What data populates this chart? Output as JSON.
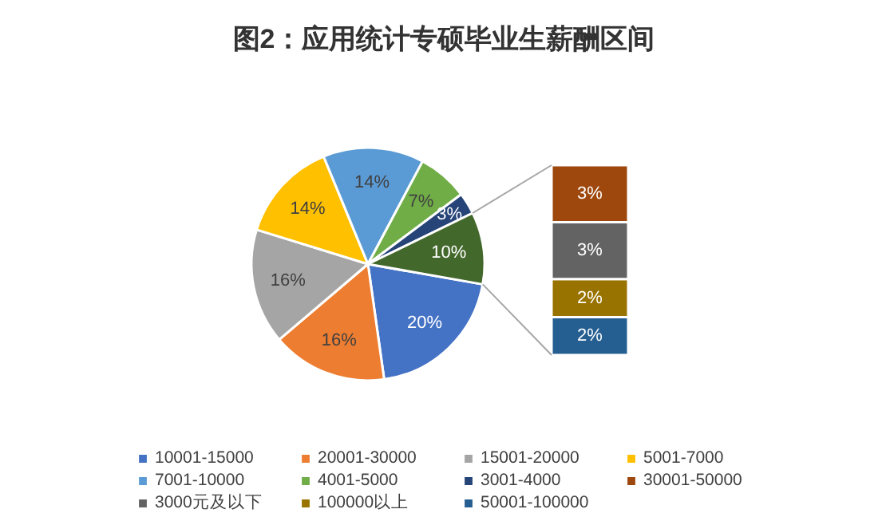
{
  "chart_data": [
    {
      "type": "pie",
      "title": "图2：应用统计专硕毕业生薪酬区间",
      "categories": [
        "10001-15000",
        "20001-30000",
        "15001-20000",
        "5001-7000",
        "7001-10000",
        "4001-5000",
        "3001-4000",
        null
      ],
      "values": [
        20,
        16,
        16,
        14,
        14,
        7,
        3,
        10
      ],
      "value_labels": [
        "20%",
        "16%",
        "16%",
        "14%",
        "14%",
        "7%",
        "3%",
        "10%"
      ],
      "colors": [
        "#4472c4",
        "#ed7d31",
        "#a5a5a5",
        "#ffc000",
        "#5b9bd5",
        "#70ad47",
        "#264478",
        "#43682b"
      ],
      "legend": "bottom"
    },
    {
      "type": "bar",
      "stacked": true,
      "categories": [
        null
      ],
      "legend": "bottom",
      "series": [
        {
          "name": "50001-100000",
          "color": "#255e91",
          "values": [
            2
          ],
          "value_labels": [
            "2%"
          ]
        },
        {
          "name": "100000以上",
          "color": "#997300",
          "values": [
            2
          ],
          "value_labels": [
            "2%"
          ]
        },
        {
          "name": "3000元及以下",
          "color": "#636363",
          "values": [
            3
          ],
          "value_labels": [
            "3%"
          ]
        },
        {
          "name": "30001-50000",
          "color": "#9e480e",
          "values": [
            3
          ],
          "value_labels": [
            "3%"
          ]
        }
      ]
    }
  ]
}
